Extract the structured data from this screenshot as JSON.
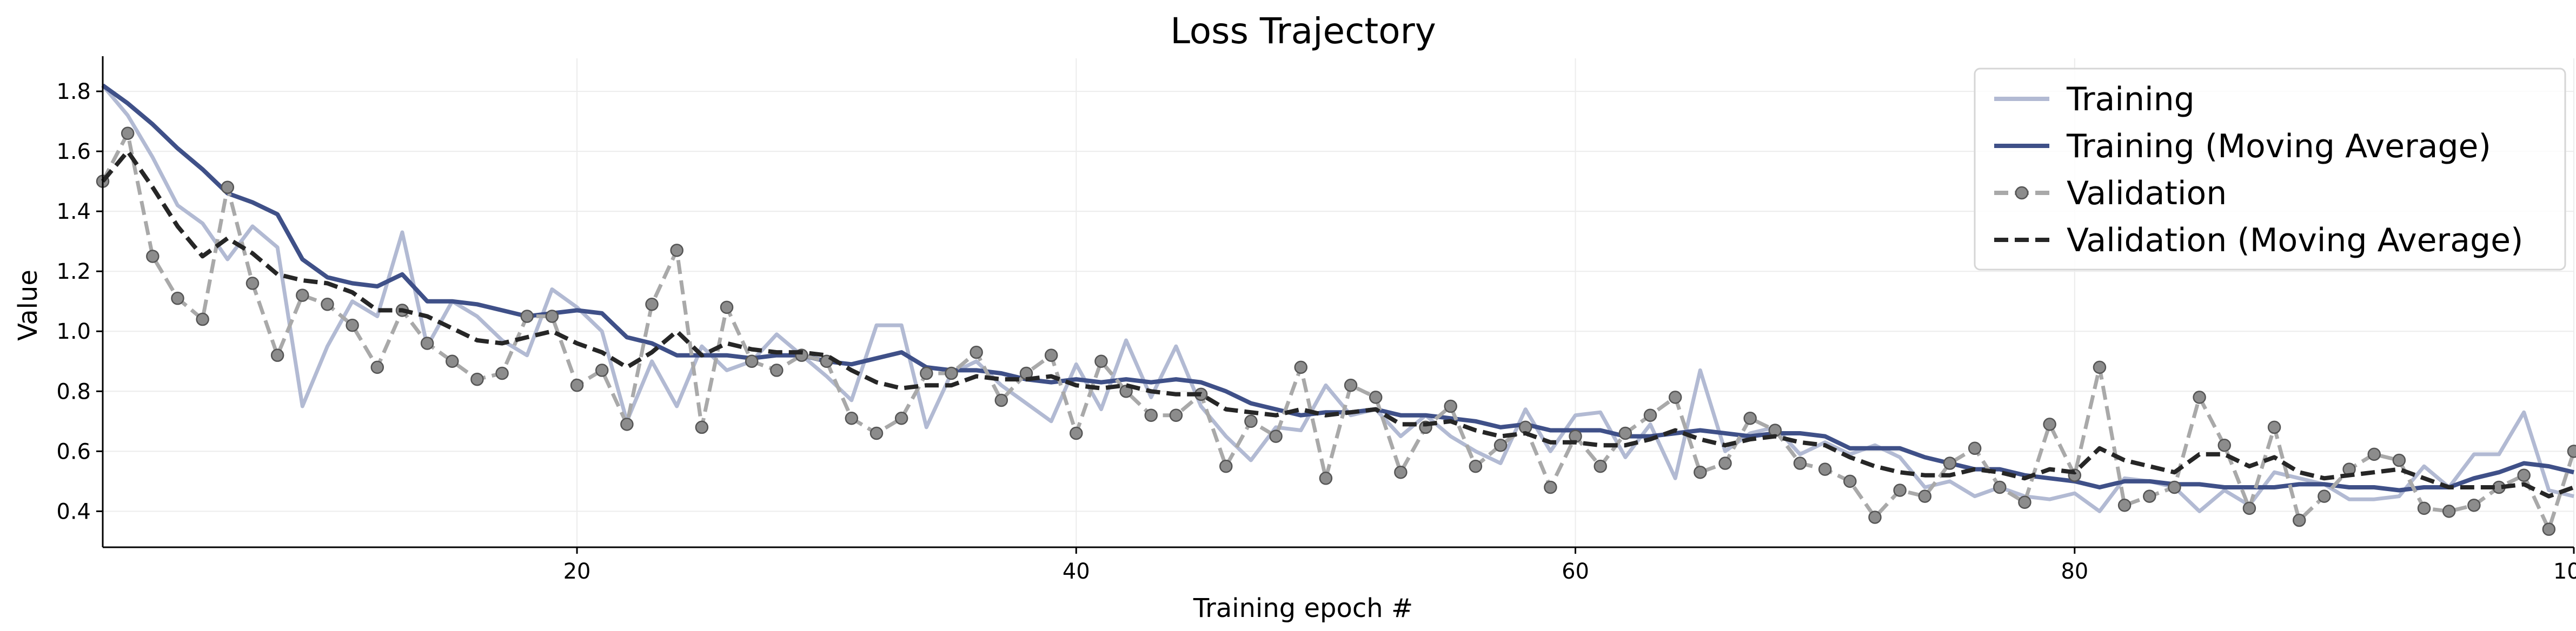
{
  "chart_data": {
    "type": "line",
    "title": "Loss Trajectory",
    "xlabel": "Training epoch #",
    "ylabel": "Value",
    "xlim": [
      1,
      100
    ],
    "ylim": [
      0.28,
      1.91
    ],
    "xticks": [
      20,
      40,
      60,
      80,
      100
    ],
    "yticks": [
      0.4,
      0.6,
      0.8,
      1.0,
      1.2,
      1.4,
      1.6,
      1.8
    ],
    "ytick_labels": [
      "0.4",
      "0.6",
      "0.8",
      "1.0",
      "1.2",
      "1.4",
      "1.6",
      "1.8"
    ],
    "grid": true,
    "legend_position": "top-right",
    "x": [
      1,
      2,
      3,
      4,
      5,
      6,
      7,
      8,
      9,
      10,
      11,
      12,
      13,
      14,
      15,
      16,
      17,
      18,
      19,
      20,
      21,
      22,
      23,
      24,
      25,
      26,
      27,
      28,
      29,
      30,
      31,
      32,
      33,
      34,
      35,
      36,
      37,
      38,
      39,
      40,
      41,
      42,
      43,
      44,
      45,
      46,
      47,
      48,
      49,
      50,
      51,
      52,
      53,
      54,
      55,
      56,
      57,
      58,
      59,
      60,
      61,
      62,
      63,
      64,
      65,
      66,
      67,
      68,
      69,
      70,
      71,
      72,
      73,
      74,
      75,
      76,
      77,
      78,
      79,
      80,
      81,
      82,
      83,
      84,
      85,
      86,
      87,
      88,
      89,
      90,
      91,
      92,
      93,
      94,
      95,
      96,
      97,
      98,
      99,
      100
    ],
    "series": [
      {
        "name": "Training",
        "color": "#b2bad3",
        "style": "solid",
        "values": [
          1.82,
          1.72,
          1.58,
          1.42,
          1.36,
          1.24,
          1.35,
          1.28,
          0.75,
          0.95,
          1.1,
          1.05,
          1.33,
          0.95,
          1.1,
          1.05,
          0.97,
          0.92,
          1.14,
          1.08,
          1.0,
          0.7,
          0.9,
          0.75,
          0.95,
          0.87,
          0.9,
          0.99,
          0.92,
          0.85,
          0.77,
          1.02,
          1.02,
          0.68,
          0.86,
          0.9,
          0.82,
          0.76,
          0.7,
          0.89,
          0.74,
          0.97,
          0.78,
          0.95,
          0.75,
          0.65,
          0.57,
          0.68,
          0.67,
          0.82,
          0.72,
          0.74,
          0.65,
          0.72,
          0.65,
          0.6,
          0.56,
          0.74,
          0.6,
          0.72,
          0.73,
          0.58,
          0.69,
          0.51,
          0.87,
          0.6,
          0.66,
          0.68,
          0.59,
          0.63,
          0.59,
          0.62,
          0.58,
          0.48,
          0.5,
          0.45,
          0.48,
          0.45,
          0.44,
          0.46,
          0.4,
          0.51,
          0.5,
          0.48,
          0.4,
          0.47,
          0.42,
          0.53,
          0.51,
          0.49,
          0.44,
          0.44,
          0.45,
          0.55,
          0.48,
          0.59,
          0.59,
          0.73,
          0.47,
          0.45
        ]
      },
      {
        "name": "Training (Moving Average)",
        "color": "#3f5088",
        "style": "solid",
        "values": [
          1.82,
          1.76,
          1.69,
          1.61,
          1.54,
          1.46,
          1.43,
          1.39,
          1.24,
          1.18,
          1.16,
          1.15,
          1.19,
          1.1,
          1.1,
          1.09,
          1.07,
          1.05,
          1.06,
          1.07,
          1.06,
          0.98,
          0.96,
          0.92,
          0.92,
          0.92,
          0.91,
          0.92,
          0.92,
          0.9,
          0.89,
          0.91,
          0.93,
          0.88,
          0.87,
          0.87,
          0.86,
          0.84,
          0.83,
          0.84,
          0.83,
          0.84,
          0.83,
          0.84,
          0.83,
          0.8,
          0.76,
          0.74,
          0.72,
          0.73,
          0.73,
          0.74,
          0.72,
          0.72,
          0.71,
          0.7,
          0.68,
          0.69,
          0.67,
          0.67,
          0.67,
          0.65,
          0.65,
          0.66,
          0.67,
          0.66,
          0.65,
          0.66,
          0.66,
          0.65,
          0.61,
          0.61,
          0.61,
          0.58,
          0.56,
          0.54,
          0.54,
          0.52,
          0.51,
          0.5,
          0.48,
          0.5,
          0.5,
          0.49,
          0.49,
          0.48,
          0.48,
          0.48,
          0.49,
          0.49,
          0.48,
          0.48,
          0.47,
          0.48,
          0.48,
          0.51,
          0.53,
          0.56,
          0.55,
          0.53
        ]
      },
      {
        "name": "Validation",
        "color": "#a9a9a9",
        "style": "dashed-markers",
        "values": [
          1.5,
          1.66,
          1.25,
          1.11,
          1.04,
          1.48,
          1.16,
          0.92,
          1.12,
          1.09,
          1.02,
          0.88,
          1.07,
          0.96,
          0.9,
          0.84,
          0.86,
          1.05,
          1.05,
          0.82,
          0.87,
          0.69,
          1.09,
          1.27,
          0.68,
          1.08,
          0.9,
          0.87,
          0.92,
          0.9,
          0.71,
          0.66,
          0.71,
          0.86,
          0.86,
          0.93,
          0.77,
          0.86,
          0.92,
          0.66,
          0.9,
          0.8,
          0.72,
          0.72,
          0.79,
          0.55,
          0.7,
          0.65,
          0.88,
          0.51,
          0.82,
          0.78,
          0.53,
          0.68,
          0.75,
          0.55,
          0.62,
          0.68,
          0.48,
          0.65,
          0.55,
          0.66,
          0.72,
          0.78,
          0.53,
          0.56,
          0.71,
          0.67,
          0.56,
          0.54,
          0.5,
          0.38,
          0.47,
          0.45,
          0.56,
          0.61,
          0.48,
          0.43,
          0.69,
          0.52,
          0.88,
          0.42,
          0.45,
          0.48,
          0.78,
          0.62,
          0.41,
          0.68,
          0.37,
          0.45,
          0.54,
          0.59,
          0.57,
          0.41,
          0.4,
          0.42,
          0.48,
          0.52,
          0.34,
          0.6
        ]
      },
      {
        "name": "Validation (Moving Average)",
        "color": "#262626",
        "style": "dashed",
        "values": [
          1.5,
          1.6,
          1.48,
          1.35,
          1.25,
          1.31,
          1.26,
          1.19,
          1.17,
          1.16,
          1.13,
          1.07,
          1.07,
          1.05,
          1.01,
          0.97,
          0.96,
          0.98,
          1.0,
          0.96,
          0.93,
          0.88,
          0.93,
          1.0,
          0.92,
          0.96,
          0.94,
          0.93,
          0.93,
          0.92,
          0.87,
          0.83,
          0.81,
          0.82,
          0.82,
          0.85,
          0.84,
          0.84,
          0.85,
          0.82,
          0.81,
          0.82,
          0.8,
          0.79,
          0.79,
          0.74,
          0.73,
          0.72,
          0.74,
          0.72,
          0.73,
          0.74,
          0.69,
          0.69,
          0.7,
          0.67,
          0.65,
          0.66,
          0.63,
          0.63,
          0.62,
          0.62,
          0.64,
          0.67,
          0.64,
          0.62,
          0.64,
          0.65,
          0.63,
          0.62,
          0.58,
          0.55,
          0.53,
          0.52,
          0.52,
          0.54,
          0.53,
          0.51,
          0.54,
          0.53,
          0.61,
          0.57,
          0.55,
          0.53,
          0.59,
          0.59,
          0.55,
          0.58,
          0.53,
          0.51,
          0.52,
          0.53,
          0.54,
          0.51,
          0.48,
          0.48,
          0.48,
          0.49,
          0.45,
          0.48
        ]
      }
    ]
  }
}
